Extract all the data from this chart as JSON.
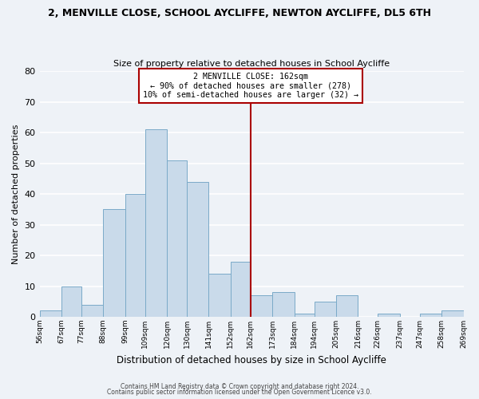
{
  "title": "2, MENVILLE CLOSE, SCHOOL AYCLIFFE, NEWTON AYCLIFFE, DL5 6TH",
  "subtitle": "Size of property relative to detached houses in School Aycliffe",
  "xlabel": "Distribution of detached houses by size in School Aycliffe",
  "ylabel": "Number of detached properties",
  "bar_color": "#c9daea",
  "bar_edge_color": "#7aaac8",
  "background_color": "#eef2f7",
  "grid_color": "#ffffff",
  "vline_x": 162,
  "vline_color": "#aa0000",
  "annotation_line1": "2 MENVILLE CLOSE: 162sqm",
  "annotation_line2": "← 90% of detached houses are smaller (278)",
  "annotation_line3": "10% of semi-detached houses are larger (32) →",
  "annotation_box_color": "#aa0000",
  "bins": [
    56,
    67,
    77,
    88,
    99,
    109,
    120,
    130,
    141,
    152,
    162,
    173,
    184,
    194,
    205,
    216,
    226,
    237,
    247,
    258,
    269
  ],
  "counts": [
    2,
    10,
    4,
    35,
    40,
    61,
    51,
    44,
    14,
    18,
    7,
    8,
    1,
    5,
    7,
    0,
    1,
    0,
    1,
    2
  ],
  "ylim": [
    0,
    80
  ],
  "yticks": [
    0,
    10,
    20,
    30,
    40,
    50,
    60,
    70,
    80
  ],
  "footer_line1": "Contains HM Land Registry data © Crown copyright and database right 2024.",
  "footer_line2": "Contains public sector information licensed under the Open Government Licence v3.0."
}
